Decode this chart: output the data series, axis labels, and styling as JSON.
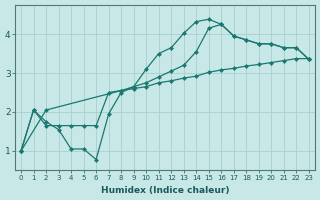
{
  "title": "",
  "xlabel": "Humidex (Indice chaleur)",
  "bg_color": "#c8e8e8",
  "line_color": "#1a7870",
  "grid_color": "#a8cece",
  "xlim": [
    -0.5,
    23.5
  ],
  "ylim": [
    0.5,
    4.75
  ],
  "yticks": [
    1,
    2,
    3,
    4
  ],
  "xticks": [
    0,
    1,
    2,
    3,
    4,
    5,
    6,
    7,
    8,
    9,
    10,
    11,
    12,
    13,
    14,
    15,
    16,
    17,
    18,
    19,
    20,
    21,
    22,
    23
  ],
  "line1_x": [
    0,
    1,
    2,
    3,
    4,
    5,
    6,
    7,
    8,
    9,
    10,
    11,
    12,
    13,
    14,
    15,
    16,
    17,
    18,
    19,
    20,
    21,
    22,
    23
  ],
  "line1_y": [
    1.0,
    2.05,
    1.75,
    1.55,
    1.05,
    1.05,
    0.78,
    1.95,
    2.5,
    2.65,
    3.1,
    3.5,
    3.65,
    4.02,
    4.32,
    4.38,
    4.25,
    3.95,
    3.85,
    3.75,
    3.75,
    3.65,
    3.65,
    3.35
  ],
  "line2_x": [
    0,
    2,
    8,
    9,
    10,
    11,
    12,
    13,
    14,
    15,
    16,
    17,
    18,
    19,
    20,
    21,
    22,
    23
  ],
  "line2_y": [
    1.0,
    2.05,
    2.55,
    2.65,
    2.75,
    2.9,
    3.05,
    3.2,
    3.55,
    4.15,
    4.25,
    3.95,
    3.85,
    3.75,
    3.75,
    3.65,
    3.65,
    3.35
  ],
  "line3_x": [
    0,
    1,
    2,
    3,
    4,
    5,
    6,
    7,
    8,
    9,
    10,
    11,
    12,
    13,
    14,
    15,
    16,
    17,
    18,
    19,
    20,
    21,
    22,
    23
  ],
  "line3_y": [
    1.0,
    2.05,
    1.65,
    1.65,
    1.65,
    1.65,
    1.65,
    2.5,
    2.55,
    2.6,
    2.65,
    2.75,
    2.8,
    2.87,
    2.92,
    3.02,
    3.08,
    3.12,
    3.18,
    3.22,
    3.27,
    3.32,
    3.37,
    3.37
  ]
}
